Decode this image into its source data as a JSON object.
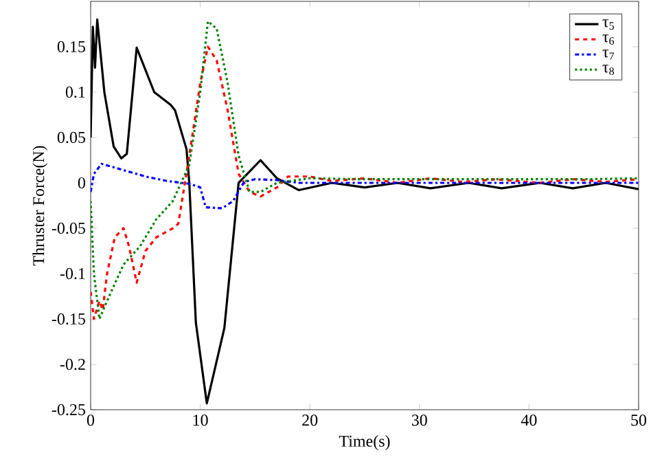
{
  "chart_data": {
    "type": "line",
    "xlabel": "Time(s)",
    "ylabel": "Thruster Force(N)",
    "xlim": [
      0,
      50
    ],
    "ylim": [
      -0.25,
      0.2
    ],
    "xticks": [
      0,
      10,
      20,
      30,
      40,
      50
    ],
    "yticks": [
      -0.25,
      -0.2,
      -0.15,
      -0.1,
      -0.05,
      0,
      0.05,
      0.1,
      0.15
    ],
    "legend": "top right",
    "grid": false,
    "x": [
      0,
      0.2,
      0.4,
      0.6,
      1.25,
      2.1,
      2.8,
      3.3,
      4.2,
      5.8,
      7.3,
      7.7,
      8.75,
      9,
      9.6,
      10.6,
      12.2,
      13.5,
      15.5,
      17,
      19,
      22,
      25,
      28,
      31,
      34.5,
      37.5,
      41,
      44,
      47,
      50
    ],
    "series": [
      {
        "name": "τ$_{5}$",
        "color": "#000000",
        "line_style": "solid",
        "values": [
          0.05,
          0.172,
          0.127,
          0.18,
          0.1,
          0.04,
          0.027,
          0.032,
          0.149,
          0.1,
          0.086,
          0.08,
          0.037,
          0,
          -0.154,
          -0.243,
          -0.16,
          0,
          0.025,
          0.005,
          -0.008,
          0,
          -0.005,
          0,
          -0.006,
          0,
          -0.006,
          0,
          -0.006,
          0,
          -0.007
        ]
      },
      {
        "name": "τ$_{6}$",
        "color": "#ff0000",
        "line_style": "dashed",
        "x": [
          0,
          0.3,
          0.8,
          1.1,
          1.5,
          2.2,
          3,
          3.5,
          4.2,
          5,
          6,
          7.5,
          8,
          9,
          10,
          10.7,
          11.5,
          12.5,
          13.5,
          14.5,
          15.5,
          17,
          18,
          20,
          22,
          25,
          28,
          31,
          34,
          37,
          41,
          44,
          47,
          50
        ],
        "values": [
          -0.12,
          -0.15,
          -0.13,
          -0.14,
          -0.1,
          -0.06,
          -0.05,
          -0.07,
          -0.11,
          -0.075,
          -0.06,
          -0.05,
          -0.045,
          0.03,
          0.11,
          0.15,
          0.135,
          0.08,
          0.01,
          -0.01,
          -0.015,
          -0.005,
          0.007,
          0.007,
          0.002,
          0.005,
          0,
          0.005,
          0.001,
          0.004,
          0,
          0.004,
          0.001,
          0.004
        ]
      },
      {
        "name": "τ$_{7}$",
        "color": "#0000ff",
        "line_style": "dashdot",
        "x": [
          0,
          0.3,
          1,
          3,
          5,
          7,
          9,
          10,
          10.5,
          12,
          13,
          14,
          15,
          17,
          19,
          50
        ],
        "values": [
          -0.01,
          0.01,
          0.021,
          0.014,
          0.007,
          0.002,
          -0.001,
          -0.005,
          -0.027,
          -0.028,
          -0.02,
          0.001,
          0.004,
          0.003,
          0,
          0
        ]
      },
      {
        "name": "τ$_{8}$",
        "color": "#008000",
        "line_style": "dotted",
        "x": [
          0,
          0.3,
          0.8,
          1.5,
          3,
          4.5,
          6,
          7.5,
          9,
          10,
          10.7,
          11.5,
          12.5,
          13.5,
          14.5,
          15.5,
          17,
          20,
          25,
          30,
          35,
          40,
          45,
          50
        ],
        "values": [
          -0.02,
          -0.1,
          -0.15,
          -0.13,
          -0.09,
          -0.07,
          -0.04,
          -0.02,
          0.02,
          0.1,
          0.178,
          0.17,
          0.11,
          0.03,
          -0.01,
          -0.01,
          0,
          0.005,
          0.004,
          0.004,
          0.004,
          0.004,
          0.004,
          0.005
        ]
      }
    ]
  }
}
